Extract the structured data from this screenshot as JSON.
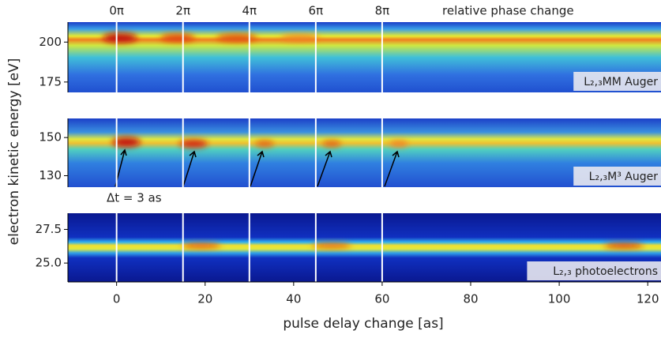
{
  "figure": {
    "ylabel": "electron kinetic energy [eV]",
    "xlabel": "pulse delay change [as]"
  },
  "chart_data": [
    {
      "type": "heatmap",
      "label": "L₂,₃MM Auger",
      "label_color": "#c040c0",
      "xlim": [
        -11,
        123
      ],
      "ylim": [
        168.5,
        212.5
      ],
      "yticks": [
        175,
        200
      ],
      "markers": [
        0,
        15,
        30,
        45,
        60
      ],
      "marker_labels": [
        "0π",
        "2π",
        "4π",
        "6π",
        "8π"
      ],
      "annotation": "relative phase change"
    },
    {
      "type": "heatmap",
      "label": "L₂,₃M³ Auger",
      "label_color": "#e03030",
      "xlim": [
        -11,
        123
      ],
      "ylim": [
        124,
        160
      ],
      "yticks": [
        130,
        150
      ],
      "markers": [
        0,
        15,
        30,
        45,
        60
      ],
      "annotation": "Δt = 3 as"
    },
    {
      "type": "heatmap",
      "label": "L₂,₃ photoelectrons",
      "label_color": "#40b040",
      "xlim": [
        -11,
        123
      ],
      "ylim": [
        23.6,
        28.7
      ],
      "yticks": [
        {
          "value": 25,
          "label": "25.0"
        },
        27.5
      ],
      "markers": [
        0,
        15,
        30,
        45,
        60
      ],
      "xticks": [
        0,
        20,
        40,
        60,
        80,
        100,
        120
      ]
    }
  ]
}
